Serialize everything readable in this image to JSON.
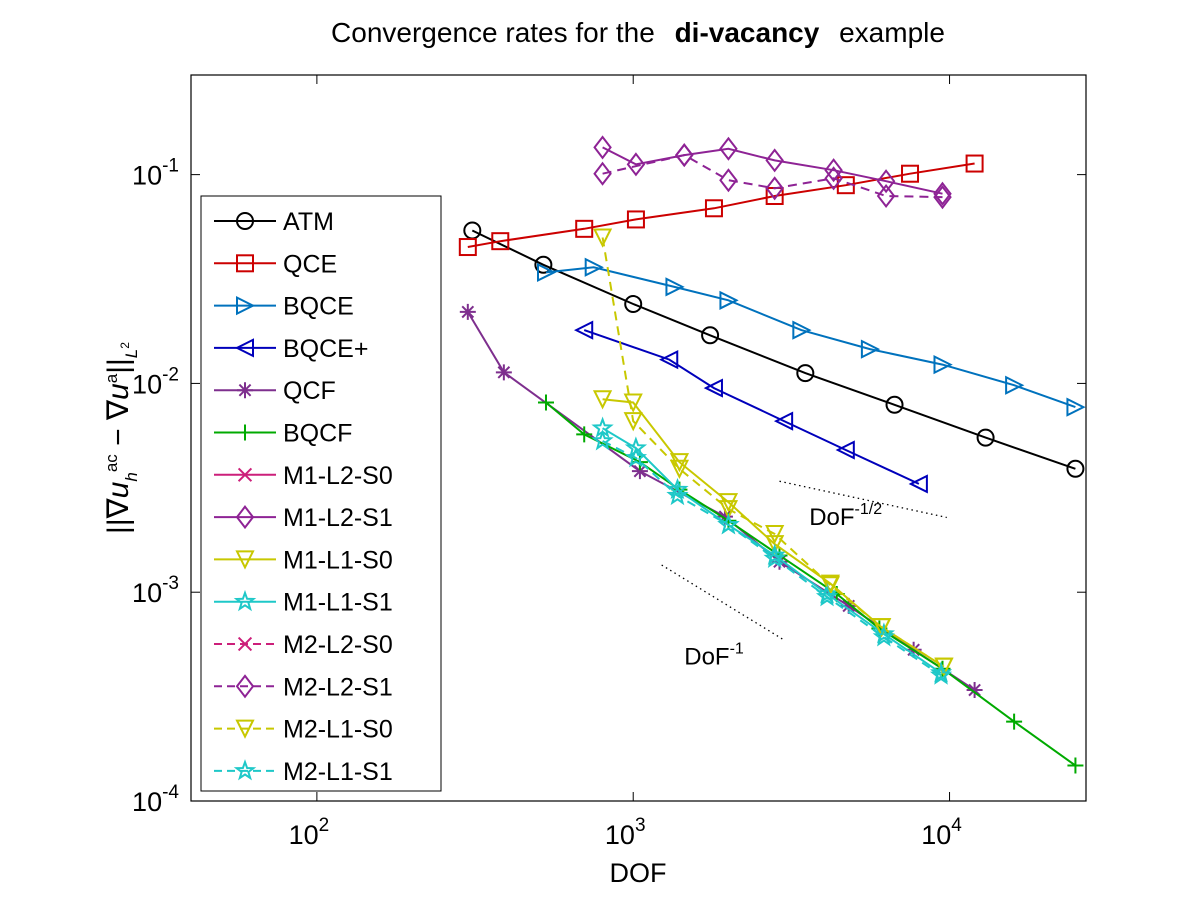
{
  "chart_data": {
    "type": "line",
    "scale": "log-log",
    "title_prefix": "Convergence rates for the",
    "title_emphasis": "di-vacancy",
    "title_suffix": "example",
    "xlabel": "DOF",
    "ylabel": "||∇u_h^ac − ∇u^a||_L²",
    "xlim": [
      40,
      27000
    ],
    "ylim": [
      0.0001,
      0.3
    ],
    "x_ticks": [
      {
        "value": 100,
        "label": "10",
        "exp": "2"
      },
      {
        "value": 1000,
        "label": "10",
        "exp": "3"
      },
      {
        "value": 10000,
        "label": "10",
        "exp": "4"
      }
    ],
    "y_ticks": [
      {
        "value": 0.0001,
        "label": "10",
        "exp": "-4"
      },
      {
        "value": 0.001,
        "label": "10",
        "exp": "-3"
      },
      {
        "value": 0.01,
        "label": "10",
        "exp": "-2"
      },
      {
        "value": 0.1,
        "label": "10",
        "exp": "-1"
      }
    ],
    "legend_position": "center-left",
    "annotations": [
      {
        "text": "DoF",
        "exp": "-1/2",
        "x": 3600,
        "y": 0.0021
      },
      {
        "text": "DoF",
        "exp": "-1",
        "x": 1450,
        "y": 0.00045
      }
    ],
    "reference_lines": [
      {
        "name": "rate-half",
        "x": [
          2900,
          9800
        ],
        "y": [
          0.0034,
          0.00228
        ]
      },
      {
        "name": "rate-one",
        "x": [
          1230,
          3000
        ],
        "y": [
          0.00135,
          0.00059
        ]
      }
    ],
    "series": [
      {
        "name": "ATM",
        "color": "#000000",
        "marker": "circle",
        "dash": "solid",
        "x": [
          310,
          520,
          1000,
          1750,
          3500,
          6700,
          13000,
          25000
        ],
        "y": [
          0.054,
          0.037,
          0.024,
          0.017,
          0.0112,
          0.0079,
          0.0055,
          0.0039
        ]
      },
      {
        "name": "QCE",
        "color": "#cc0000",
        "marker": "square",
        "dash": "solid",
        "x": [
          300,
          380,
          700,
          1020,
          1800,
          2800,
          4700,
          7500,
          12000
        ],
        "y": [
          0.045,
          0.048,
          0.055,
          0.061,
          0.069,
          0.079,
          0.089,
          0.101,
          0.113
        ]
      },
      {
        "name": "BQCE",
        "color": "#0072bd",
        "marker": "triangle-right",
        "dash": "solid",
        "x": [
          530,
          750,
          1350,
          2000,
          3400,
          5600,
          9500,
          16000,
          25000
        ],
        "y": [
          0.034,
          0.036,
          0.029,
          0.025,
          0.018,
          0.0146,
          0.0123,
          0.0098,
          0.0077
        ]
      },
      {
        "name": "BQCE+",
        "color": "#0000bb",
        "marker": "triangle-left",
        "dash": "solid",
        "x": [
          700,
          1300,
          1800,
          3000,
          4700,
          8000
        ],
        "y": [
          0.018,
          0.013,
          0.0095,
          0.0066,
          0.0048,
          0.0033
        ]
      },
      {
        "name": "QCF",
        "color": "#7e2f8e",
        "marker": "asterisk",
        "dash": "solid",
        "x": [
          300,
          390,
          1050,
          1950,
          2900,
          4800,
          7700,
          12000
        ],
        "y": [
          0.022,
          0.0113,
          0.0038,
          0.0023,
          0.0014,
          0.00086,
          0.00053,
          0.00034
        ]
      },
      {
        "name": "BQCF",
        "color": "#00aa00",
        "marker": "plus",
        "dash": "solid",
        "x": [
          530,
          700,
          1050,
          1400,
          2000,
          2900,
          4400,
          6000,
          9500,
          16000,
          25000
        ],
        "y": [
          0.0081,
          0.0057,
          0.0042,
          0.0031,
          0.0022,
          0.0015,
          0.00098,
          0.00067,
          0.00043,
          0.00024,
          0.000148
        ]
      },
      {
        "name": "M1-L2-S0",
        "color": "#cc1f7a",
        "marker": "x",
        "dash": "solid",
        "x": [],
        "y": []
      },
      {
        "name": "M1-L2-S1",
        "color": "#8e2395",
        "marker": "diamond",
        "dash": "solid",
        "x": [
          800,
          1020,
          1450,
          2000,
          2800,
          4300,
          6300,
          9500
        ],
        "y": [
          0.135,
          0.112,
          0.124,
          0.133,
          0.117,
          0.105,
          0.093,
          0.081
        ]
      },
      {
        "name": "M1-L1-S0",
        "color": "#c8c800",
        "marker": "triangle-down",
        "dash": "solid",
        "x": [
          800,
          1000,
          1400,
          2000,
          2800,
          4200,
          6100,
          9600
        ],
        "y": [
          0.0084,
          0.0081,
          0.0042,
          0.0027,
          0.0017,
          0.0011,
          0.00068,
          0.00044
        ]
      },
      {
        "name": "M1-L1-S1",
        "color": "#1ec8c8",
        "marker": "star",
        "dash": "solid",
        "x": [
          800,
          1020,
          1380,
          2000,
          2800,
          4100,
          6200,
          9400
        ],
        "y": [
          0.0061,
          0.0049,
          0.0031,
          0.0021,
          0.0015,
          0.00098,
          0.00063,
          0.00041
        ]
      },
      {
        "name": "M2-L2-S0",
        "color": "#cc1f7a",
        "marker": "x",
        "dash": "dashed",
        "x": [],
        "y": []
      },
      {
        "name": "M2-L2-S1",
        "color": "#8e2395",
        "marker": "diamond",
        "dash": "dashed",
        "x": [
          800,
          1450,
          2000,
          2800,
          4300,
          6300,
          9500
        ],
        "y": [
          0.101,
          0.124,
          0.094,
          0.086,
          0.096,
          0.079,
          0.078
        ]
      },
      {
        "name": "M2-L1-S0",
        "color": "#c8c800",
        "marker": "triangle-down",
        "dash": "dashed",
        "x": [
          800,
          1000,
          1400,
          2000,
          2800,
          4200,
          6100,
          9600
        ],
        "y": [
          0.05,
          0.0066,
          0.0039,
          0.0025,
          0.0019,
          0.00108,
          0.00068,
          0.00044
        ]
      },
      {
        "name": "M2-L1-S1",
        "color": "#1ec8c8",
        "marker": "star",
        "dash": "dashed",
        "x": [
          800,
          1020,
          1380,
          2000,
          2800,
          4100,
          6200,
          9400
        ],
        "y": [
          0.0053,
          0.0044,
          0.0029,
          0.0021,
          0.00145,
          0.00095,
          0.00061,
          0.0004
        ]
      }
    ]
  }
}
